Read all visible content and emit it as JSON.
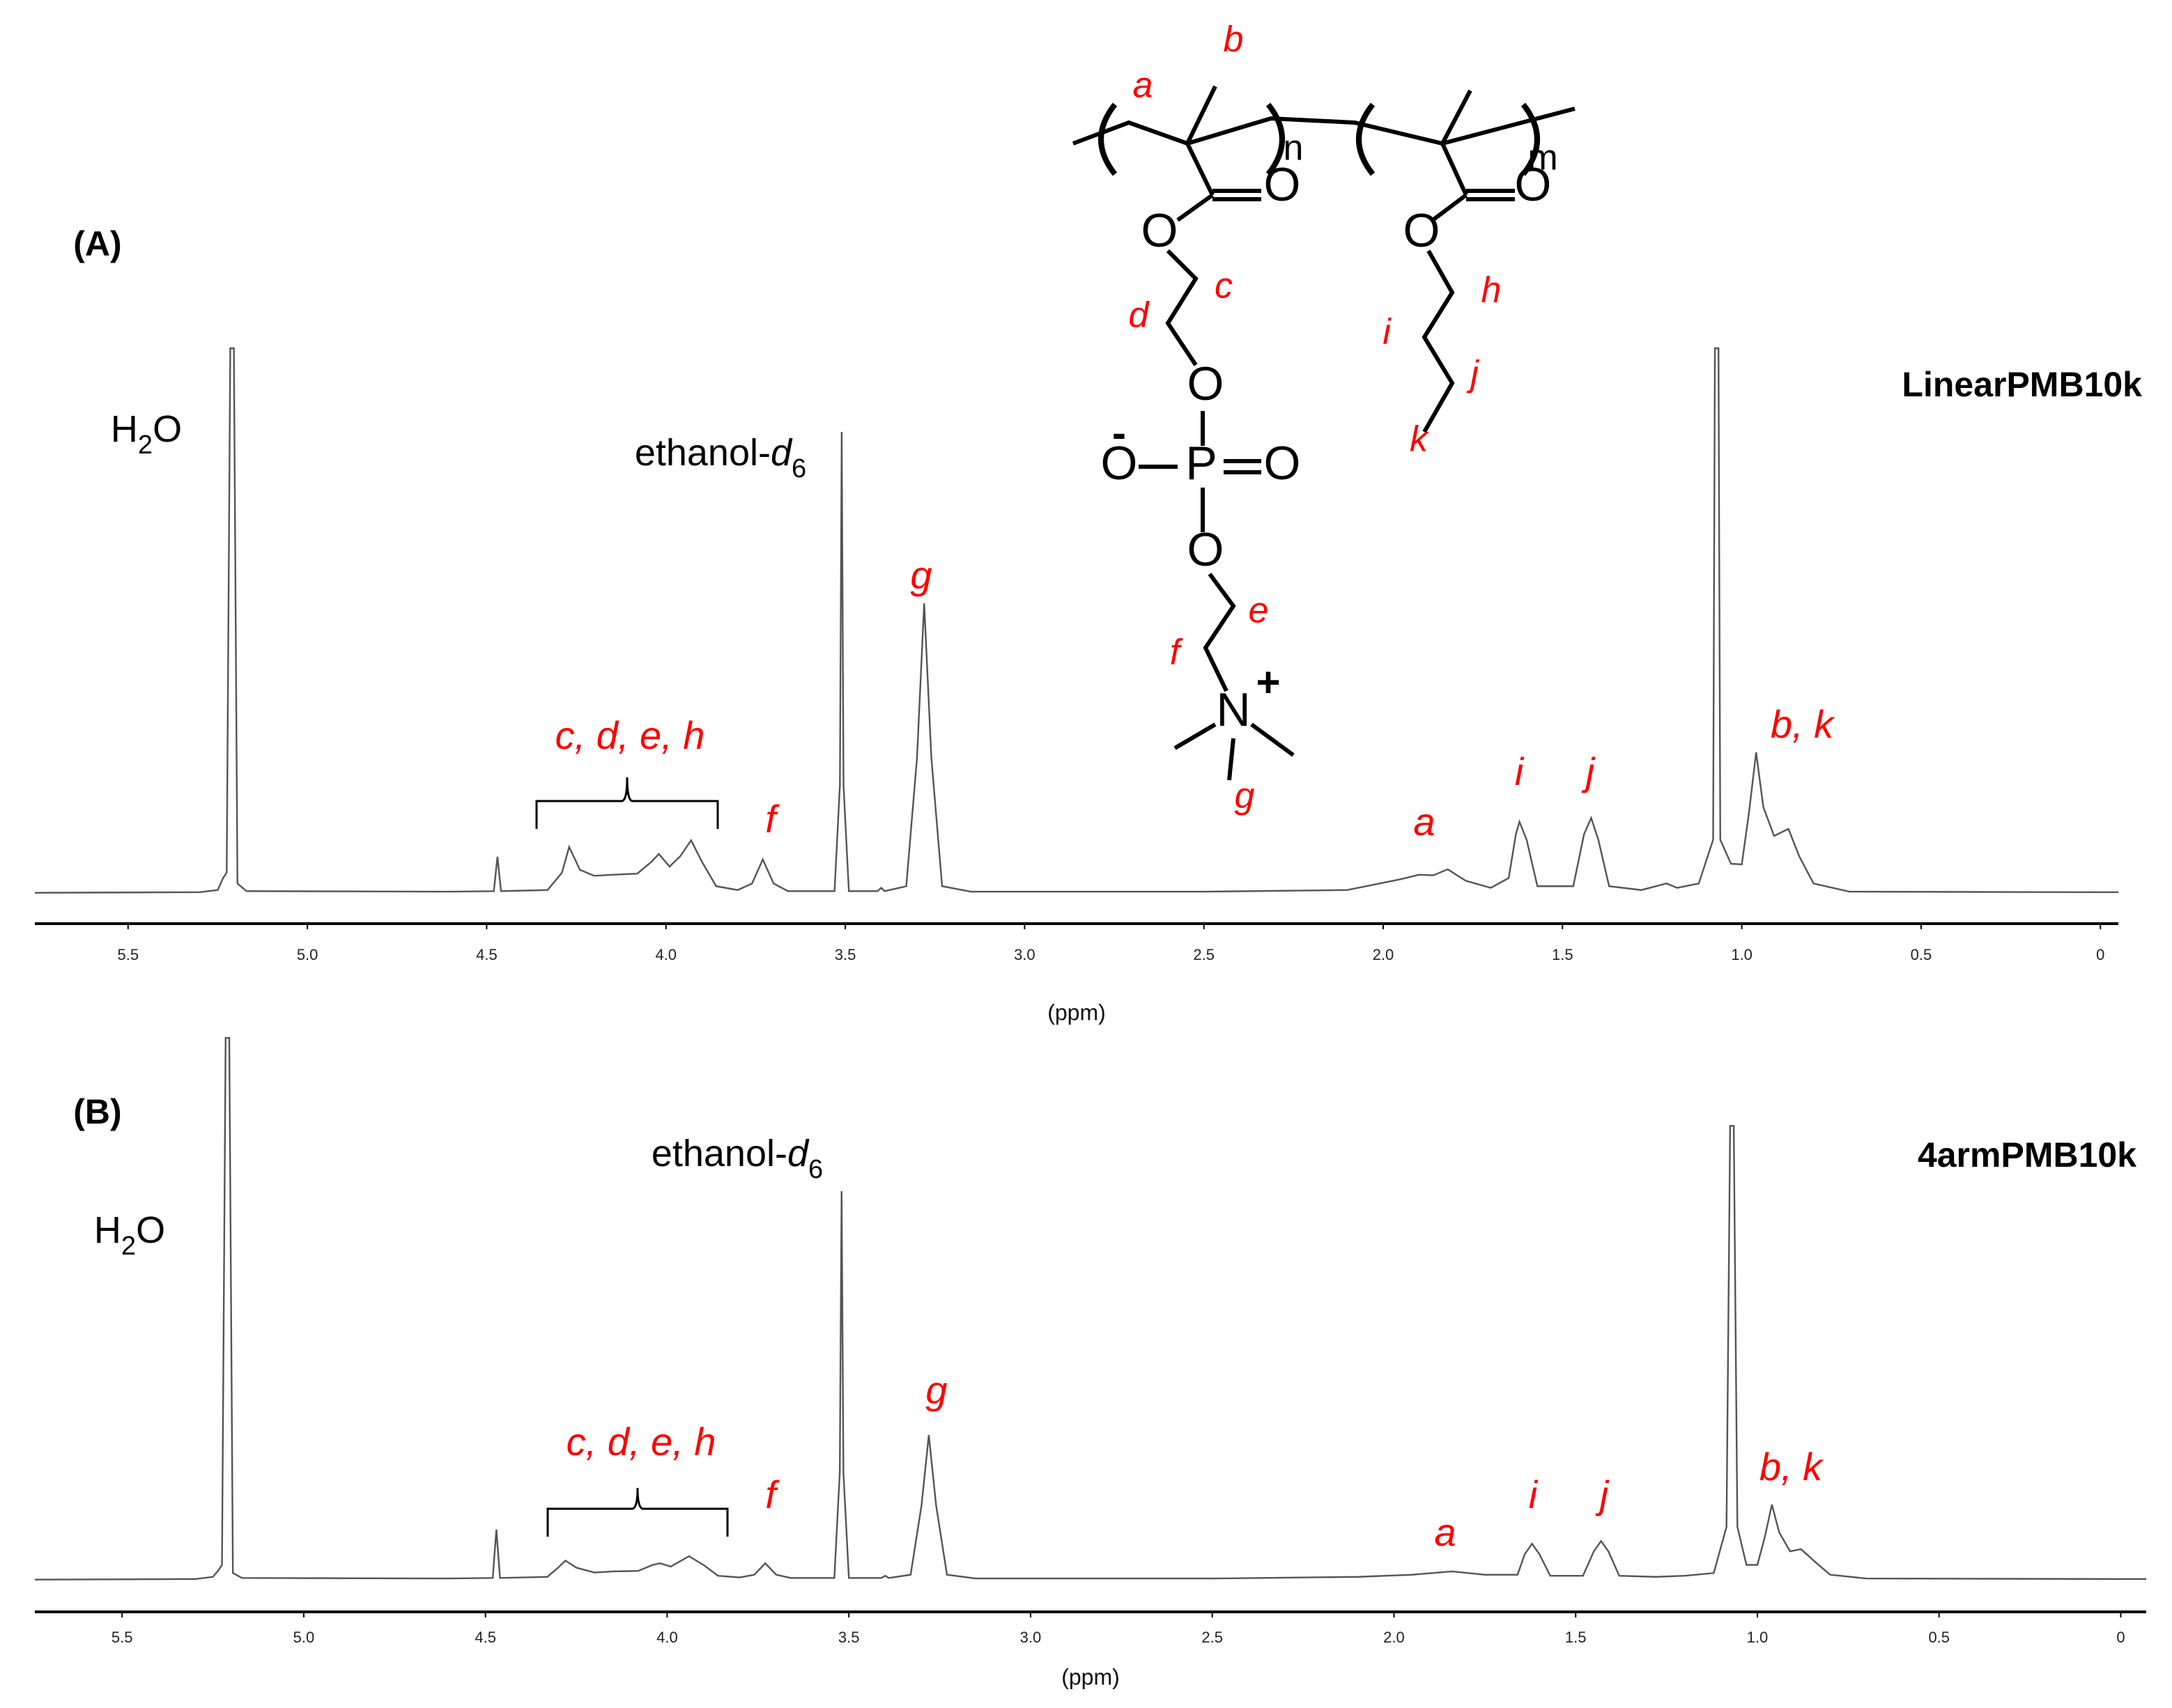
{
  "chart_data": [
    {
      "type": "line",
      "panel": "(A)",
      "name": "LinearPMB10k",
      "xlabel": "(ppm)",
      "color": "#555555",
      "xlim": [
        5.76,
        -0.05
      ],
      "ylim": [
        0,
        100
      ],
      "xticks": [
        5.5,
        {
          "value": 5,
          "label": "5.0"
        },
        4.5,
        {
          "value": 4,
          "label": "4.0"
        },
        3.5,
        {
          "value": 3,
          "label": "3.0"
        },
        2.5,
        {
          "value": 2,
          "label": "2.0"
        },
        1.5,
        {
          "value": 1,
          "label": "1.0"
        },
        0.5,
        0
      ],
      "x": [
        5.76,
        5.3,
        5.25,
        5.235,
        5.225,
        5.215,
        5.205,
        5.195,
        5.17,
        4.6,
        4.48,
        4.47,
        4.46,
        4.33,
        4.29,
        4.27,
        4.24,
        4.2,
        4.15,
        4.08,
        4.04,
        4.02,
        3.99,
        3.96,
        3.93,
        3.9,
        3.86,
        3.8,
        3.76,
        3.73,
        3.7,
        3.66,
        3.53,
        3.515,
        3.51,
        3.505,
        3.49,
        3.41,
        3.4,
        3.39,
        3.33,
        3.3,
        3.28,
        3.26,
        3.23,
        3.15,
        2.5,
        2.1,
        1.95,
        1.9,
        1.86,
        1.82,
        1.77,
        1.7,
        1.65,
        1.63,
        1.62,
        1.6,
        1.57,
        1.47,
        1.44,
        1.42,
        1.4,
        1.37,
        1.28,
        1.21,
        1.18,
        1.12,
        1.08,
        1.075,
        1.065,
        1.06,
        1.03,
        1.0,
        0.98,
        0.96,
        0.94,
        0.91,
        0.87,
        0.84,
        0.8,
        0.7,
        0,
        -0.05
      ],
      "values": [
        0.3,
        0.4,
        0.8,
        3,
        4,
        100,
        100,
        2,
        0.6,
        0.5,
        0.6,
        6.9,
        0.6,
        0.8,
        4,
        8.7,
        4.5,
        3.4,
        3.6,
        3.8,
        6,
        7.4,
        5.1,
        7,
        9.9,
        6,
        1.5,
        0.8,
        2,
        6.4,
        2,
        0.6,
        0.6,
        20,
        84.7,
        20,
        0.6,
        0.6,
        1.2,
        0.6,
        1.5,
        25,
        53.3,
        25,
        1.5,
        0.5,
        0.5,
        0.8,
        2.8,
        3.6,
        3.5,
        4.6,
        2.5,
        1.2,
        3,
        11,
        13.3,
        10,
        1.5,
        1.5,
        11,
        14,
        10,
        1.5,
        0.8,
        2,
        1.2,
        2,
        10,
        100,
        100,
        10,
        5.6,
        5.5,
        15,
        26,
        16,
        10.7,
        12,
        7,
        2,
        0.5,
        0.4,
        0.4
      ],
      "solvent_labels": [
        {
          "parts": [
            "H",
            "2",
            "O"
          ]
        },
        {
          "parts": [
            "ethanol-",
            "d",
            "6"
          ]
        }
      ],
      "annotations": [
        "c, d, e, h",
        "f",
        "g",
        "a",
        "i",
        "j",
        "b, k"
      ],
      "annotation_color": "#ff0000"
    },
    {
      "type": "line",
      "panel": "(B)",
      "name": "4armPMB10k",
      "xlabel": "(ppm)",
      "color": "#555555",
      "xlim": [
        5.74,
        -0.07
      ],
      "ylim": [
        0,
        100
      ],
      "xticks": [
        5.5,
        {
          "value": 5,
          "label": "5.0"
        },
        4.5,
        {
          "value": 4,
          "label": "4.0"
        },
        3.5,
        {
          "value": 3,
          "label": "3.0"
        },
        2.5,
        {
          "value": 2,
          "label": "2.0"
        },
        1.5,
        {
          "value": 1,
          "label": "1.0"
        },
        0.5,
        0
      ],
      "x": [
        5.74,
        5.3,
        5.25,
        5.235,
        5.225,
        5.215,
        5.205,
        5.195,
        5.17,
        4.6,
        4.48,
        4.47,
        4.46,
        4.33,
        4.3,
        4.28,
        4.25,
        4.2,
        4.15,
        4.08,
        4.04,
        4.02,
        3.99,
        3.94,
        3.9,
        3.86,
        3.8,
        3.76,
        3.73,
        3.7,
        3.66,
        3.54,
        3.525,
        3.52,
        3.515,
        3.5,
        3.41,
        3.4,
        3.39,
        3.33,
        3.3,
        3.28,
        3.26,
        3.23,
        3.15,
        2.5,
        2.1,
        1.95,
        1.84,
        1.75,
        1.66,
        1.64,
        1.62,
        1.6,
        1.57,
        1.48,
        1.45,
        1.43,
        1.41,
        1.38,
        1.28,
        1.2,
        1.12,
        1.085,
        1.075,
        1.065,
        1.055,
        1.03,
        1.0,
        0.98,
        0.96,
        0.94,
        0.91,
        0.88,
        0.84,
        0.8,
        0.7,
        0,
        -0.07
      ],
      "values": [
        0.3,
        0.4,
        0.8,
        2,
        3,
        100,
        100,
        1.5,
        0.6,
        0.5,
        0.6,
        9.5,
        0.6,
        0.8,
        2.5,
        3.8,
        2.5,
        1.6,
        1.8,
        1.9,
        3,
        3.3,
        2.7,
        4.6,
        3,
        1,
        0.7,
        1.2,
        3.3,
        1.2,
        0.6,
        0.6,
        20,
        71.8,
        20,
        0.6,
        0.6,
        1,
        0.6,
        1.2,
        14,
        26.9,
        14,
        1.2,
        0.5,
        0.5,
        0.8,
        1.2,
        1.8,
        1.2,
        1.2,
        5,
        6.9,
        5,
        1,
        1,
        5.5,
        7.4,
        5.5,
        1,
        0.8,
        1,
        1.5,
        10,
        83.8,
        83.8,
        10,
        3,
        3,
        8,
        14.1,
        9,
        5.5,
        5.9,
        3.5,
        1.2,
        0.5,
        0.4,
        0.4
      ],
      "solvent_labels": [
        {
          "parts": [
            "H",
            "2",
            "O"
          ]
        },
        {
          "parts": [
            "ethanol-",
            "d",
            "6"
          ]
        }
      ],
      "annotations": [
        "c, d, e, h",
        "f",
        "g",
        "a",
        "i",
        "j",
        "b, k"
      ],
      "annotation_color": "#ff0000"
    }
  ],
  "structure": {
    "atoms": [
      "O",
      "O",
      "O",
      "O",
      "P",
      "O",
      "O",
      "N",
      "O",
      "O"
    ],
    "charges": [
      "-",
      "+"
    ],
    "subscripts": [
      "n",
      "m"
    ],
    "labels": [
      "a",
      "b",
      "c",
      "d",
      "e",
      "f",
      "g",
      "h",
      "i",
      "j",
      "k"
    ]
  }
}
